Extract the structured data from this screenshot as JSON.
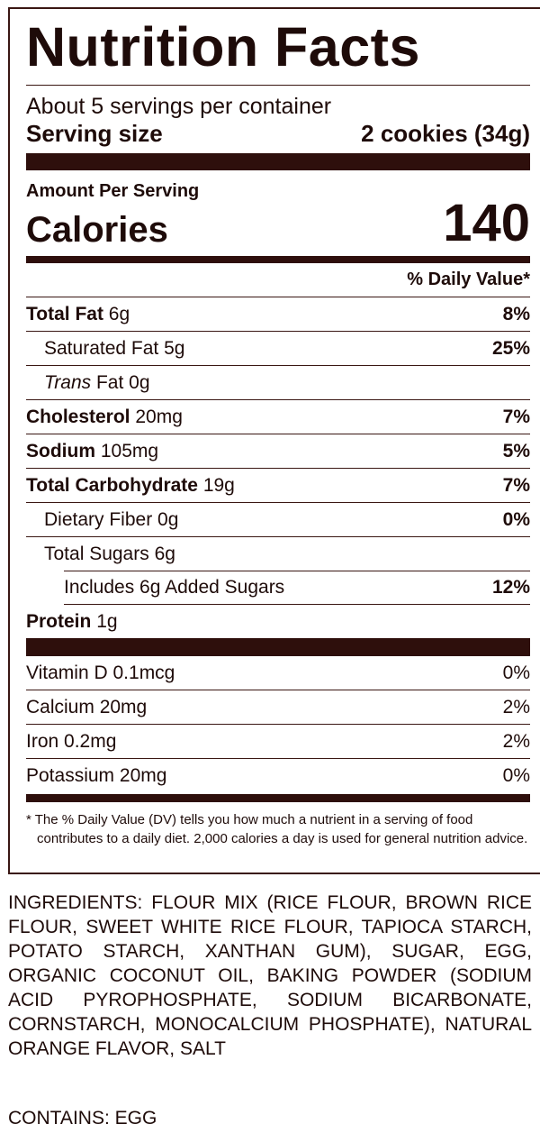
{
  "header": {
    "title": "Nutrition Facts",
    "servings": "About 5 servings per container",
    "serving_size_label": "Serving size",
    "serving_size": "2 cookies (34g)"
  },
  "calories": {
    "amount_per_serving": "Amount Per Serving",
    "label": "Calories",
    "value": "140"
  },
  "daily_value_header": "% Daily Value*",
  "nutrients": [
    {
      "name": "Total Fat",
      "amount": "6g",
      "dv": "8%"
    },
    {
      "name": "Saturated Fat",
      "amount": "5g",
      "dv": "25%"
    },
    {
      "name_italic": "Trans",
      "name": "Fat",
      "amount": "0g"
    },
    {
      "name": "Cholesterol",
      "amount": "20mg",
      "dv": "7%"
    },
    {
      "name": "Sodium",
      "amount": "105mg",
      "dv": "5%"
    },
    {
      "name": "Total Carbohydrate",
      "amount": "19g",
      "dv": "7%"
    },
    {
      "name": "Dietary Fiber",
      "amount": "0g",
      "dv": "0%"
    },
    {
      "name": "Total Sugars",
      "amount": "6g"
    },
    {
      "name": "Includes 6g Added Sugars",
      "dv": "12%"
    },
    {
      "name": "Protein",
      "amount": "1g"
    }
  ],
  "vitamins": [
    {
      "name": "Vitamin D",
      "amount": "0.1mcg",
      "dv": "0%"
    },
    {
      "name": "Calcium",
      "amount": "20mg",
      "dv": "2%"
    },
    {
      "name": "Iron",
      "amount": "0.2mg",
      "dv": "2%"
    },
    {
      "name": "Potassium",
      "amount": "20mg",
      "dv": "0%"
    }
  ],
  "footnote": "* The % Daily Value (DV) tells you how much a nutrient in a serving of food contributes to a daily diet. 2,000 calories a day is used for general nutrition advice.",
  "ingredients": "INGREDIENTS: FLOUR MIX (RICE FLOUR, BROWN RICE FLOUR, SWEET WHITE RICE FLOUR, TAPIOCA STARCH, POTATO STARCH, XANTHAN GUM), SUGAR, EGG, ORGANIC COCONUT OIL, BAKING POWDER (SODIUM ACID PYROPHOSPHATE, SODIUM BICARBONATE, CORNSTARCH, MONOCALCIUM PHOSPHATE), NATURAL ORANGE FLAVOR, SALT",
  "contains": "CONTAINS: EGG"
}
